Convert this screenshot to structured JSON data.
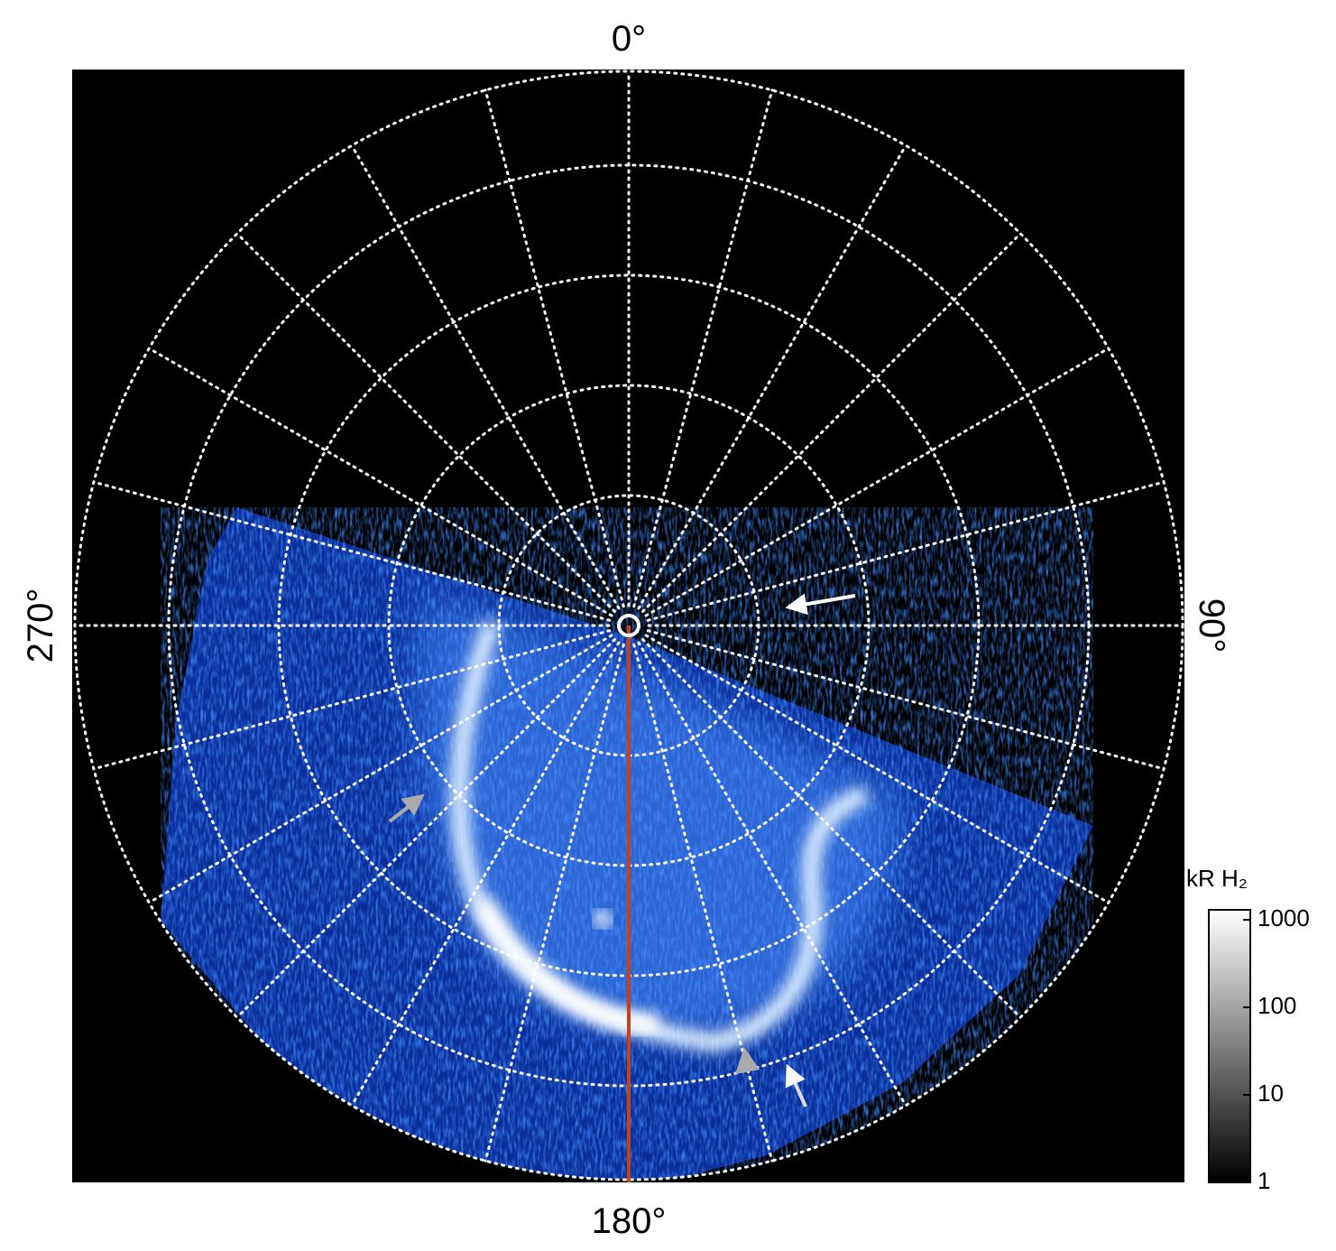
{
  "chart_data": {
    "type": "polar-image",
    "axis_labels": {
      "top": "0°",
      "right": "90°",
      "bottom": "180°",
      "left": "270°"
    },
    "colorbar": {
      "label": "kR H₂",
      "scale": "log",
      "lim": [
        1,
        1300
      ],
      "ticks": [
        1,
        10,
        100,
        1000
      ],
      "colors": [
        "#000000",
        "#ffffff"
      ]
    },
    "grid": true
  }
}
